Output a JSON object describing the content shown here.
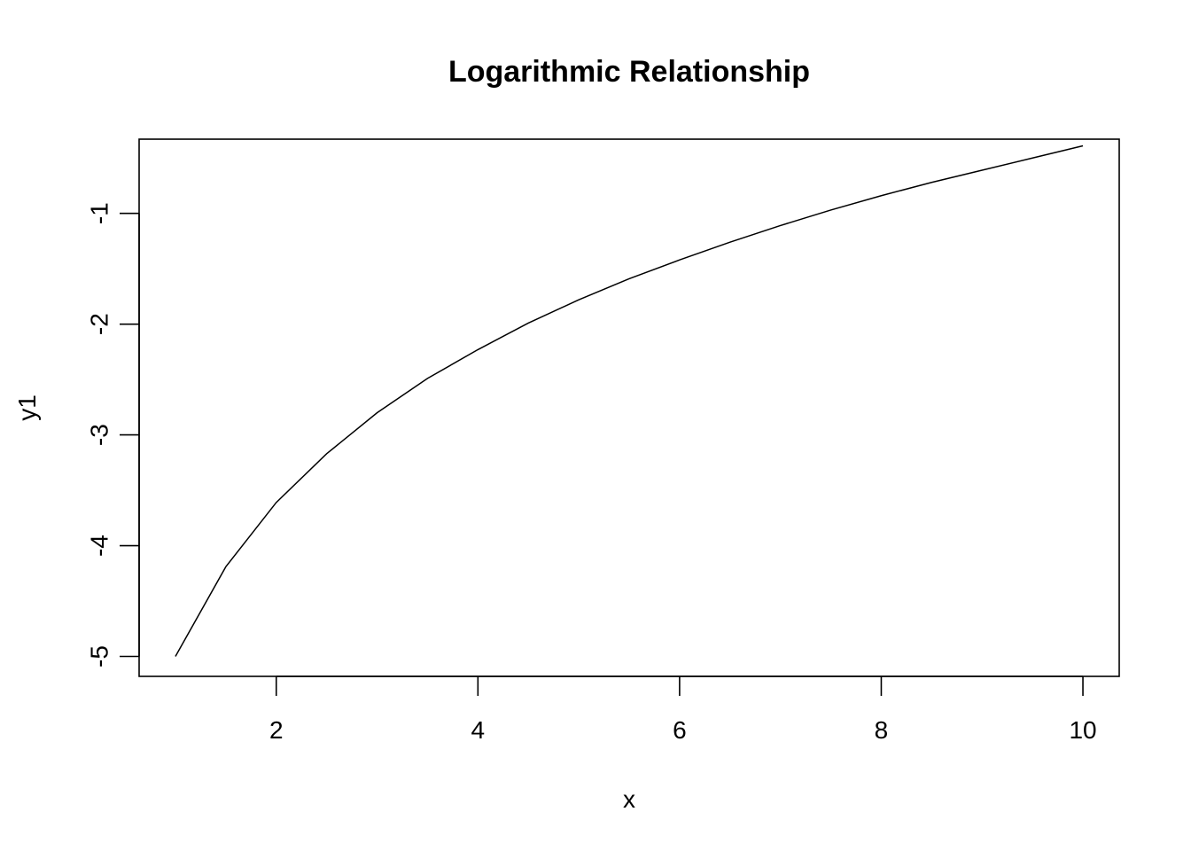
{
  "chart_data": {
    "type": "line",
    "title": "Logarithmic Relationship",
    "xlabel": "x",
    "ylabel": "y1",
    "xlim": [
      0.64,
      10.36
    ],
    "ylim": [
      -5.18,
      -0.33
    ],
    "x_ticks": [
      2,
      4,
      6,
      8,
      10
    ],
    "x_tick_labels": [
      "2",
      "4",
      "6",
      "8",
      "10"
    ],
    "y_ticks": [
      -5,
      -4,
      -3,
      -2,
      -1
    ],
    "y_tick_labels": [
      "-5",
      "-4",
      "-3",
      "-2",
      "-1"
    ],
    "grid": false,
    "series": [
      {
        "x": [
          1,
          1.5,
          2,
          2.5,
          3,
          3.5,
          4,
          4.5,
          5,
          5.5,
          6,
          6.5,
          7,
          7.5,
          8,
          8.5,
          9,
          9.5,
          10
        ],
        "values": [
          -5.0,
          -4.19,
          -3.61,
          -3.17,
          -2.8,
          -2.49,
          -2.23,
          -1.99,
          -1.78,
          -1.59,
          -1.42,
          -1.26,
          -1.11,
          -0.97,
          -0.84,
          -0.72,
          -0.61,
          -0.5,
          -0.39
        ]
      }
    ]
  }
}
